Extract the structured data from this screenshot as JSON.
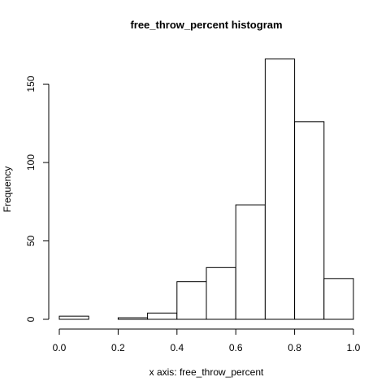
{
  "chart_data": {
    "type": "bar",
    "title": "free_throw_percent histogram",
    "xlabel": "x axis: free_throw_percent",
    "ylabel": "Frequency",
    "bins": [
      {
        "from": 0.0,
        "to": 0.1,
        "count": 2
      },
      {
        "from": 0.1,
        "to": 0.2,
        "count": 0
      },
      {
        "from": 0.2,
        "to": 0.3,
        "count": 1
      },
      {
        "from": 0.3,
        "to": 0.4,
        "count": 4
      },
      {
        "from": 0.4,
        "to": 0.5,
        "count": 24
      },
      {
        "from": 0.5,
        "to": 0.6,
        "count": 33
      },
      {
        "from": 0.6,
        "to": 0.7,
        "count": 73
      },
      {
        "from": 0.7,
        "to": 0.8,
        "count": 166
      },
      {
        "from": 0.8,
        "to": 0.9,
        "count": 126
      },
      {
        "from": 0.9,
        "to": 1.0,
        "count": 26
      }
    ],
    "xlim": [
      0,
      1
    ],
    "ylim": [
      0,
      150
    ],
    "x_ticks": [
      0.0,
      0.2,
      0.4,
      0.6,
      0.8,
      1.0
    ],
    "x_tick_labels": [
      "0.0",
      "0.2",
      "0.4",
      "0.6",
      "0.8",
      "1.0"
    ],
    "y_ticks": [
      0,
      50,
      100,
      150
    ],
    "y_tick_labels": [
      "0",
      "50",
      "100",
      "150"
    ],
    "grid": false,
    "legend": "none"
  }
}
